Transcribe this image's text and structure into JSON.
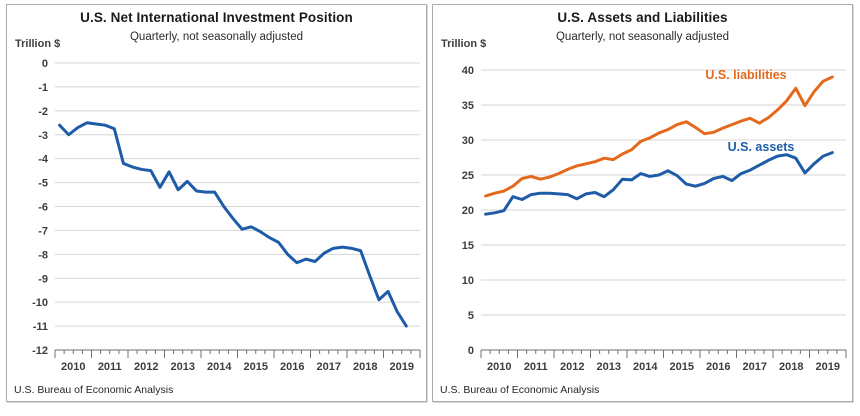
{
  "page": {
    "background": "#ffffff"
  },
  "chart_data": [
    {
      "type": "line",
      "title": "U.S. Net International Investment Position",
      "subtitle": "Quarterly, not seasonally adjusted",
      "unit_label": "Trillion $",
      "source": "U.S. Bureau of Economic Analysis",
      "x_description": "Quarterly, 2010Q1 through 2019Q3",
      "year_labels": [
        "2010",
        "2011",
        "2012",
        "2013",
        "2014",
        "2015",
        "2016",
        "2017",
        "2018",
        "2019"
      ],
      "quarters_per_year": 4,
      "ylim": [
        -12,
        0
      ],
      "yticks": [
        0,
        -1,
        -2,
        -3,
        -4,
        -5,
        -6,
        -7,
        -8,
        -9,
        -10,
        -11,
        -12
      ],
      "grid": true,
      "legend": "none",
      "series": [
        {
          "name": "U.S. net international investment position",
          "color": "#1e5ca8",
          "values": [
            -2.6,
            -3.0,
            -2.7,
            -2.5,
            -2.55,
            -2.6,
            -2.75,
            -4.2,
            -4.35,
            -4.45,
            -4.5,
            -5.2,
            -4.55,
            -5.3,
            -4.95,
            -5.35,
            -5.4,
            -5.4,
            -6.0,
            -6.5,
            -6.95,
            -6.85,
            -7.05,
            -7.3,
            -7.5,
            -8.0,
            -8.35,
            -8.2,
            -8.3,
            -7.95,
            -7.75,
            -7.7,
            -7.75,
            -7.85,
            -8.9,
            -9.9,
            -9.55,
            -10.4,
            -11.0
          ]
        }
      ]
    },
    {
      "type": "line",
      "title": "U.S. Assets and Liabilities",
      "subtitle": "Quarterly, not seasonally adjusted",
      "unit_label": "Trillion $",
      "source": "U.S. Bureau of Economic Analysis",
      "x_description": "Quarterly, 2010Q1 through 2019Q3",
      "year_labels": [
        "2010",
        "2011",
        "2012",
        "2013",
        "2014",
        "2015",
        "2016",
        "2017",
        "2018",
        "2019"
      ],
      "quarters_per_year": 4,
      "ylim": [
        0,
        40
      ],
      "yticks": [
        40,
        35,
        30,
        25,
        20,
        15,
        10,
        5,
        0
      ],
      "grid": true,
      "legend": "inline",
      "series": [
        {
          "name": "U.S. liabilities",
          "color": "#e5691d",
          "values": [
            22.0,
            22.4,
            22.7,
            23.4,
            24.5,
            24.8,
            24.4,
            24.7,
            25.2,
            25.8,
            26.3,
            26.6,
            26.9,
            27.4,
            27.2,
            28.0,
            28.6,
            29.8,
            30.3,
            31.0,
            31.5,
            32.2,
            32.6,
            31.8,
            30.9,
            31.1,
            31.7,
            32.2,
            32.7,
            33.1,
            32.4,
            33.2,
            34.3,
            35.6,
            37.4,
            34.9,
            36.9,
            38.4,
            39.0
          ]
        },
        {
          "name": "U.S. assets",
          "color": "#1e5ca8",
          "values": [
            19.4,
            19.6,
            19.9,
            21.9,
            21.5,
            22.2,
            22.4,
            22.4,
            22.3,
            22.2,
            21.6,
            22.3,
            22.5,
            21.9,
            22.9,
            24.4,
            24.3,
            25.2,
            24.8,
            25.0,
            25.6,
            24.9,
            23.7,
            23.4,
            23.8,
            24.5,
            24.8,
            24.2,
            25.2,
            25.7,
            26.4,
            27.1,
            27.7,
            27.9,
            27.4,
            25.3,
            26.6,
            27.7,
            28.2
          ]
        }
      ]
    }
  ]
}
